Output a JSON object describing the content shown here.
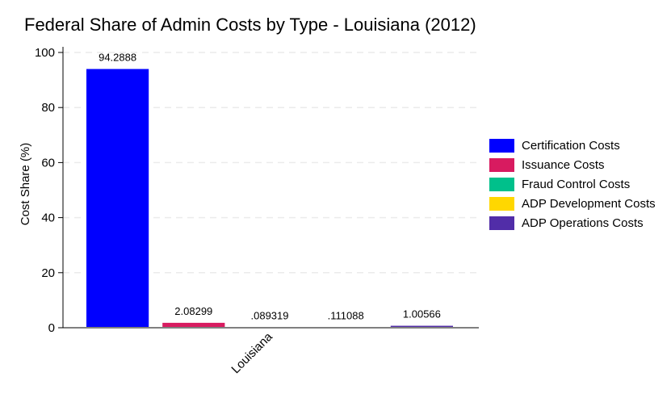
{
  "chart_data": {
    "type": "bar",
    "title": "Federal Share of Admin Costs by Type - Louisiana (2012)",
    "xlabel": "",
    "ylabel": "Cost Share (%)",
    "categories": [
      "Louisiana"
    ],
    "ylim": [
      0,
      100
    ],
    "yticks": [
      0,
      20,
      40,
      60,
      80,
      100
    ],
    "grid": "horizontal dashed",
    "legend_position": "right",
    "series": [
      {
        "name": "Certification Costs",
        "color": "#0000ff",
        "values": [
          94.2888
        ],
        "label": "94.2888"
      },
      {
        "name": "Issuance Costs",
        "color": "#d81b60",
        "values": [
          2.08299
        ],
        "label": "2.08299"
      },
      {
        "name": "Fraud Control Costs",
        "color": "#00c08b",
        "values": [
          0.089319
        ],
        "label": ".089319"
      },
      {
        "name": "ADP Development Costs",
        "color": "#ffd700",
        "values": [
          0.111088
        ],
        "label": ".111088"
      },
      {
        "name": "ADP Operations Costs",
        "color": "#512da8",
        "values": [
          1.00566
        ],
        "label": "1.00566"
      }
    ]
  }
}
